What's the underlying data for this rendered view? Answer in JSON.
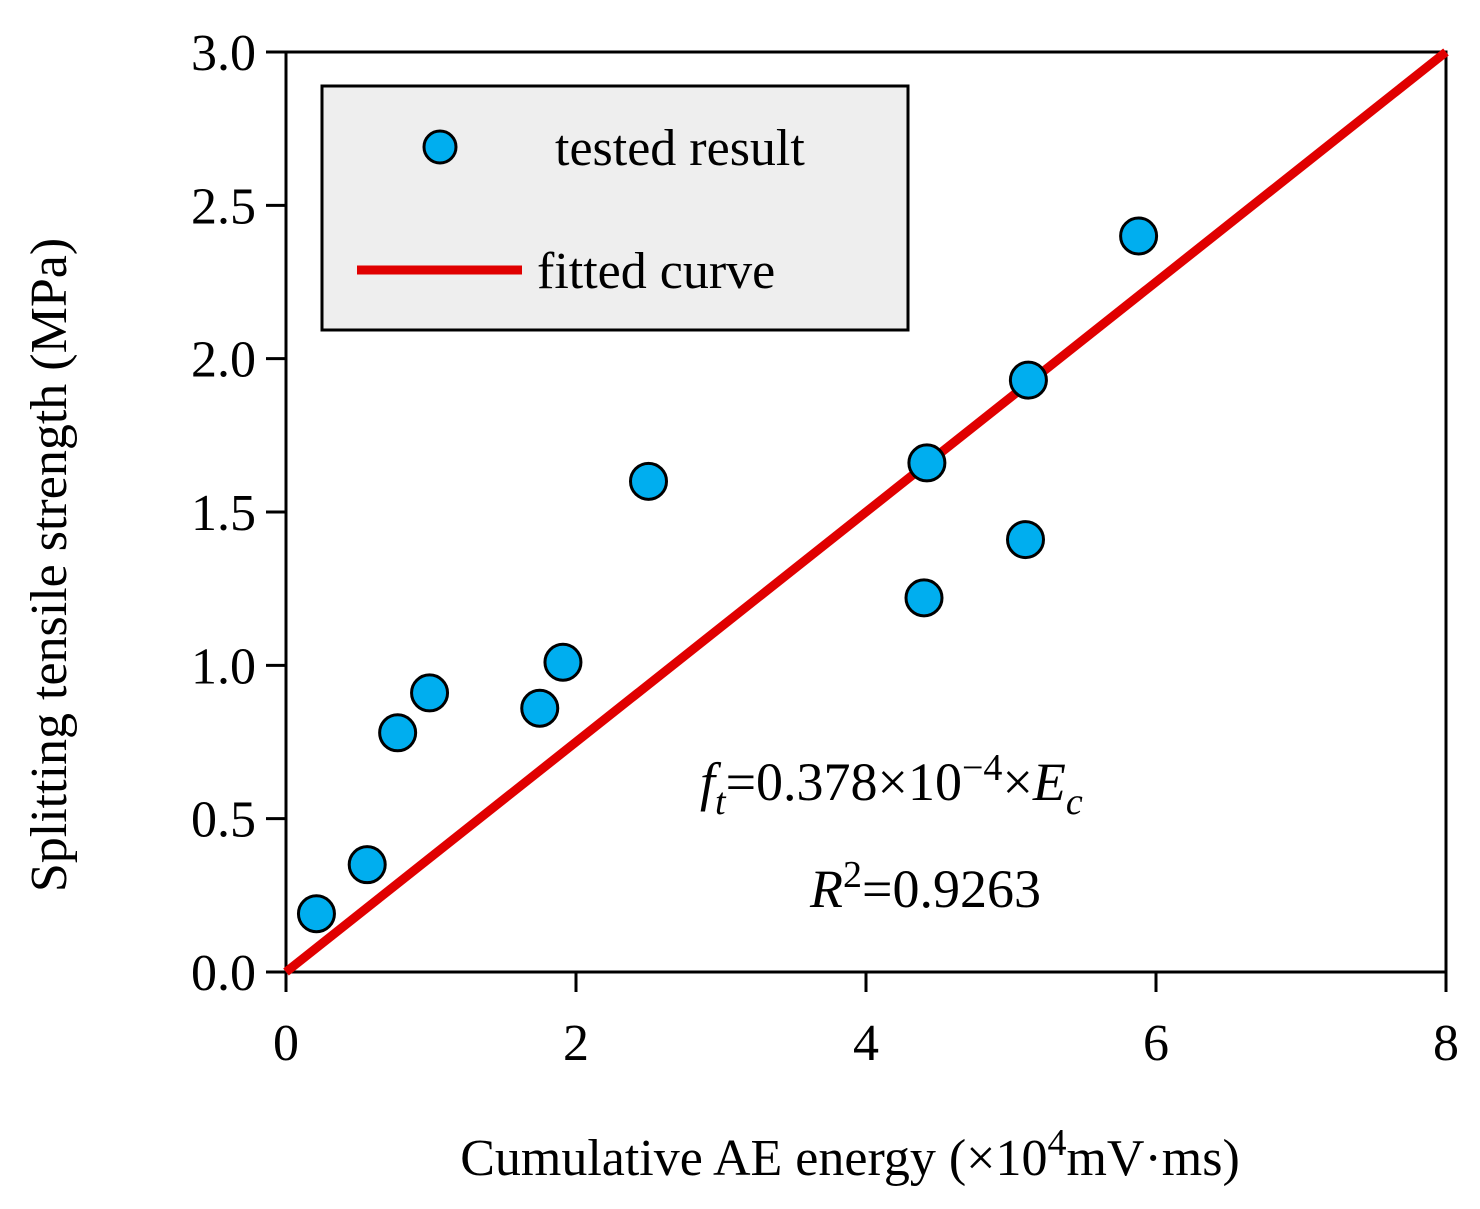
{
  "chart_data": {
    "type": "scatter",
    "xlabel": "Cumulative AE energy (×10",
    "xlabel_sup": "4",
    "xlabel_tail": "mV·ms)",
    "ylabel": "Splitting tensile strength (MPa)",
    "xlim": [
      0,
      8
    ],
    "ylim": [
      0,
      3.0
    ],
    "x_ticks": [
      "0",
      "2",
      "4",
      "6",
      "8"
    ],
    "x_tick_values": [
      0,
      2,
      4,
      6,
      8
    ],
    "y_ticks": [
      "0.0",
      "0.5",
      "1.0",
      "1.5",
      "2.0",
      "2.5",
      "3.0"
    ],
    "y_tick_values": [
      0,
      0.5,
      1.0,
      1.5,
      2.0,
      2.5,
      3.0
    ],
    "series": [
      {
        "name": "tested result",
        "type": "scatter",
        "color": "#00AEEF",
        "points": [
          [
            0.21,
            0.19
          ],
          [
            0.56,
            0.35
          ],
          [
            0.77,
            0.78
          ],
          [
            0.99,
            0.91
          ],
          [
            1.75,
            0.86
          ],
          [
            1.91,
            1.01
          ],
          [
            2.5,
            1.6
          ],
          [
            4.4,
            1.22
          ],
          [
            4.42,
            1.66
          ],
          [
            5.1,
            1.41
          ],
          [
            5.12,
            1.93
          ],
          [
            5.88,
            2.4
          ]
        ]
      },
      {
        "name": "fitted curve",
        "type": "line",
        "color": "#E00000",
        "points": [
          [
            0,
            0
          ],
          [
            8,
            3.0
          ]
        ]
      }
    ],
    "legend": {
      "position": "top-left",
      "entries": [
        "tested result",
        "fitted curve"
      ]
    },
    "annotations": {
      "eq_f": "f",
      "eq_f_sub": "t",
      "eq_mid": "=0.378×10",
      "eq_exp": "−4",
      "eq_times": "×",
      "eq_E": "E",
      "eq_E_sub": "c",
      "r2_R": "R",
      "r2_sup": "2",
      "r2_val": "=0.9263"
    }
  }
}
